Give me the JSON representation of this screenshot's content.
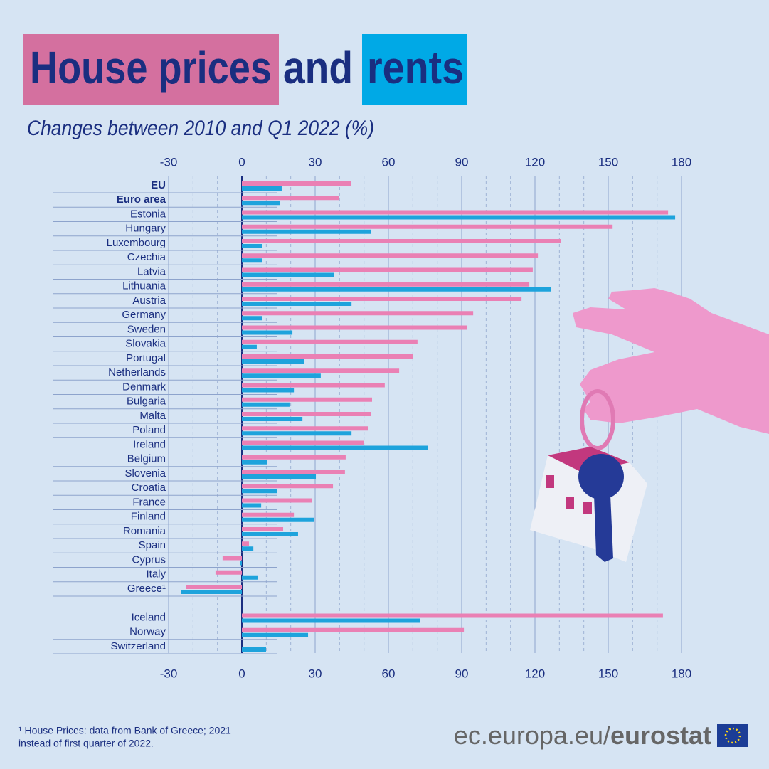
{
  "chart_data": {
    "type": "bar",
    "title": "and",
    "subtitle": "Changes between 2010 and Q1 2022 (%)",
    "categories": [
      "EU",
      "Euro area",
      "Estonia",
      "Hungary",
      "Luxembourg",
      "Czechia",
      "Latvia",
      "Lithuania",
      "Austria",
      "Germany",
      "Sweden",
      "Slovakia",
      "Portugal",
      "Netherlands",
      "Denmark",
      "Bulgaria",
      "Malta",
      "Poland",
      "Ireland",
      "Belgium",
      "Slovenia",
      "Croatia",
      "France",
      "Finland",
      "Romania",
      "Spain",
      "Cyprus",
      "Italy",
      "Greece¹",
      null,
      "Iceland",
      "Norway",
      "Switzerland"
    ],
    "series": [
      {
        "name": "House prices",
        "color": "#ea80b4",
        "values": [
          44.6,
          39.9,
          174.5,
          151.8,
          130.5,
          121.2,
          119.1,
          117.7,
          114.5,
          94.7,
          92.3,
          71.9,
          69.9,
          64.4,
          58.5,
          53.3,
          53,
          51.6,
          49.8,
          42.5,
          42.2,
          37.3,
          28.8,
          21.3,
          16.9,
          2.9,
          -7.9,
          -10.8,
          -23,
          null,
          172.4,
          90.9,
          null
        ]
      },
      {
        "name": "rents",
        "color": "#1ea3dc",
        "values": [
          16.3,
          15.7,
          177.4,
          53,
          8.2,
          8.4,
          37.6,
          126.7,
          44.9,
          8.4,
          20.7,
          6.1,
          25.6,
          32.3,
          21.3,
          19.5,
          24.8,
          44.9,
          76.3,
          10.2,
          30.3,
          14.3,
          7.9,
          29.7,
          23,
          4.7,
          -0.6,
          6.4,
          -25,
          null,
          73.1,
          27.1,
          9.9
        ]
      }
    ],
    "xlim": [
      -30,
      180
    ],
    "xticks": [
      -30,
      0,
      30,
      60,
      90,
      120,
      150,
      180
    ],
    "grid": true,
    "footnote": [
      "¹ House Prices: data from Bank of Greece; 2021",
      "instead of first quarter of 2022."
    ],
    "source": [
      "ec.europa.eu/",
      "eurostat"
    ]
  }
}
